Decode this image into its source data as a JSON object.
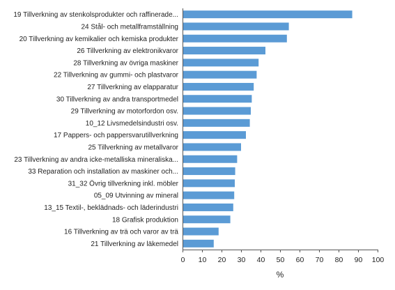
{
  "chart_data": {
    "type": "bar",
    "orientation": "horizontal",
    "categories": [
      "19 Tillverkning av stenkolsprodukter och raffinerade...",
      "24 Stål- och metallframställning",
      "20 Tillverkning av kemikalier och kemiska produkter",
      "26 Tillverkning av elektronikvaror",
      "28 Tillverkning av övriga maskiner",
      "22 Tillverkning av gummi- och plastvaror",
      "27 Tillverkning av elapparatur",
      "30 Tillverkning av andra transportmedel",
      "29 Tillverkning av motorfordon osv.",
      "10_12 Livsmedelsindustri osv.",
      "17 Pappers- och pappersvarutillverkning",
      "25 Tillverkning av metallvaror",
      "23 Tillverkning av andra icke-metalliska mineraliska...",
      "33 Reparation och installation av maskiner och...",
      "31_32 Övrig tillverkning inkl. möbler",
      "05_09 Utvinning av mineral",
      "13_15 Textil-, beklädnads- och läderindustri",
      "18 Grafisk produktion",
      "16 Tillverkning av trä och varor av trä",
      "21 Tillverkning av läkemedel"
    ],
    "values": [
      87,
      54.5,
      53.5,
      42.5,
      39,
      38,
      36.5,
      35.5,
      35,
      34.5,
      32.5,
      30,
      28,
      27,
      26.8,
      26.5,
      26,
      24.5,
      18.5,
      16
    ],
    "xlabel": "%",
    "ylabel": "",
    "title": "",
    "xlim": [
      0,
      100
    ],
    "xticks": [
      0,
      10,
      20,
      30,
      40,
      50,
      60,
      70,
      80,
      90,
      100
    ],
    "grid": false,
    "legend": "none",
    "bar_color": "#5b9bd5"
  }
}
